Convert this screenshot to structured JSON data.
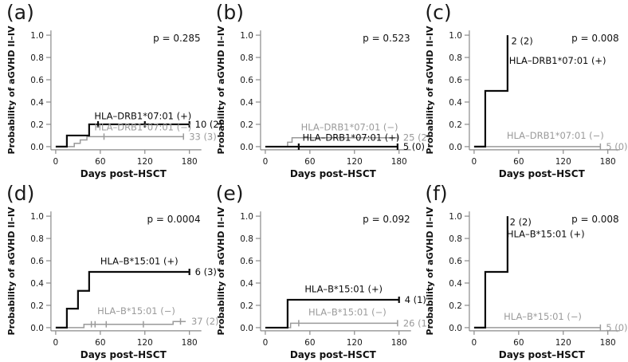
{
  "chart_data": {
    "type": "line",
    "subtype": "kaplan-meier-cumulative-incidence-steps",
    "title": "",
    "xlabel": "Days post–HSCT",
    "ylabel": "Probability of aGVHD II–IV",
    "xlim": [
      0,
      180
    ],
    "ylim": [
      0.0,
      1.0
    ],
    "x_ticks": [
      0,
      60,
      120,
      180
    ],
    "y_ticks": [
      "0.0",
      "0.2",
      "0.4",
      "0.6",
      "0.8",
      "1.0"
    ],
    "grid": "off",
    "legend_position": "inline-labels",
    "colors": {
      "positive_series": "#0a0a0a",
      "negative_series": "#9a9a9a",
      "axis": "#8a8a8a"
    },
    "panels": [
      {
        "letter": "(a)",
        "p_value_label": "p = 0.285",
        "series": [
          {
            "name": "HLA–DRB1*07:01 (+)",
            "group": "positive",
            "end_label": "10 (2)",
            "steps": [
              [
                0,
                0
              ],
              [
                15,
                0.1
              ],
              [
                45,
                0.2
              ],
              [
                180,
                0.2
              ]
            ],
            "censor_days": [
              57,
              120,
              180
            ],
            "name_label_at": [
              52,
              0.225
            ]
          },
          {
            "name": "HLA–DRB1*07:01 (−)",
            "group": "negative",
            "end_label": "33 (3)",
            "steps": [
              [
                0,
                0
              ],
              [
                25,
                0.03
              ],
              [
                33,
                0.06
              ],
              [
                42,
                0.09
              ],
              [
                172,
                0.09
              ]
            ],
            "censor_days": [
              65,
              172
            ],
            "name_label_at": [
              52,
              0.125
            ]
          }
        ]
      },
      {
        "letter": "(b)",
        "p_value_label": "p = 0.523",
        "series": [
          {
            "name": "HLA–DRB1*07:01 (+)",
            "group": "positive",
            "end_label": "5 (0)",
            "steps": [
              [
                0,
                0
              ],
              [
                178,
                0
              ]
            ],
            "censor_days": [
              45,
              178
            ],
            "name_label_at": [
              50,
              0.03
            ]
          },
          {
            "name": "HLA–DRB1*07:01 (−)",
            "group": "negative",
            "end_label": "25 (2)",
            "steps": [
              [
                0,
                0
              ],
              [
                30,
                0.04
              ],
              [
                36,
                0.08
              ],
              [
                178,
                0.08
              ]
            ],
            "censor_days": [
              178
            ],
            "name_label_at": [
              48,
              0.125
            ]
          }
        ]
      },
      {
        "letter": "(c)",
        "p_value_label": "p = 0.008",
        "series": [
          {
            "name": "HLA–DRB1*07:01 (+)",
            "group": "positive",
            "end_label": null,
            "steps": [
              [
                0,
                0
              ],
              [
                15,
                0.5
              ],
              [
                45,
                1.0
              ]
            ],
            "censor_days": [],
            "name_label_at": [
              47,
              0.72
            ],
            "extra_label": "2 (2)",
            "extra_label_at": [
              50,
              0.92
            ]
          },
          {
            "name": "HLA–DRB1*07:01 (−)",
            "group": "negative",
            "end_label": "5 (0)",
            "steps": [
              [
                0,
                0
              ],
              [
                170,
                0
              ]
            ],
            "censor_days": [
              170
            ],
            "name_label_at": [
              44,
              0.05
            ]
          }
        ]
      },
      {
        "letter": "(d)",
        "p_value_label": "p = 0.0004",
        "series": [
          {
            "name": "HLA–B*15:01 (+)",
            "group": "positive",
            "end_label": "6 (3)",
            "steps": [
              [
                0,
                0
              ],
              [
                15,
                0.17
              ],
              [
                30,
                0.33
              ],
              [
                45,
                0.5
              ],
              [
                180,
                0.5
              ]
            ],
            "censor_days": [
              180
            ],
            "name_label_at": [
              60,
              0.545
            ]
          },
          {
            "name": "HLA–B*15:01 (−)",
            "group": "negative",
            "end_label": "37 (2)",
            "steps": [
              [
                0,
                0
              ],
              [
                38,
                0.03
              ],
              [
                158,
                0.055
              ],
              [
                175,
                0.055
              ]
            ],
            "censor_days": [
              48,
              53,
              68,
              118,
              168
            ],
            "name_label_at": [
              56,
              0.1
            ]
          }
        ]
      },
      {
        "letter": "(e)",
        "p_value_label": "p = 0.092",
        "series": [
          {
            "name": "HLA–B*15:01 (+)",
            "group": "positive",
            "end_label": "4 (1)",
            "steps": [
              [
                0,
                0
              ],
              [
                30,
                0.25
              ],
              [
                180,
                0.25
              ]
            ],
            "censor_days": [
              180
            ],
            "name_label_at": [
              53,
              0.295
            ]
          },
          {
            "name": "HLA–B*15:01 (−)",
            "group": "negative",
            "end_label": "26 (1)",
            "steps": [
              [
                0,
                0
              ],
              [
                34,
                0.04
              ],
              [
                178,
                0.04
              ]
            ],
            "censor_days": [
              45,
              178
            ],
            "name_label_at": [
              58,
              0.09
            ]
          }
        ]
      },
      {
        "letter": "(f)",
        "p_value_label": "p = 0.008",
        "series": [
          {
            "name": "HLA–B*15:01 (+)",
            "group": "positive",
            "end_label": null,
            "steps": [
              [
                0,
                0
              ],
              [
                15,
                0.5
              ],
              [
                45,
                1.0
              ]
            ],
            "censor_days": [],
            "name_label_at": [
              44,
              0.79
            ],
            "extra_label": "2 (2)",
            "extra_label_at": [
              48,
              0.92
            ]
          },
          {
            "name": "HLA–B*15:01 (−)",
            "group": "negative",
            "end_label": "5 (0)",
            "steps": [
              [
                0,
                0
              ],
              [
                170,
                0
              ]
            ],
            "censor_days": [
              170
            ],
            "name_label_at": [
              40,
              0.05
            ]
          }
        ]
      }
    ]
  }
}
